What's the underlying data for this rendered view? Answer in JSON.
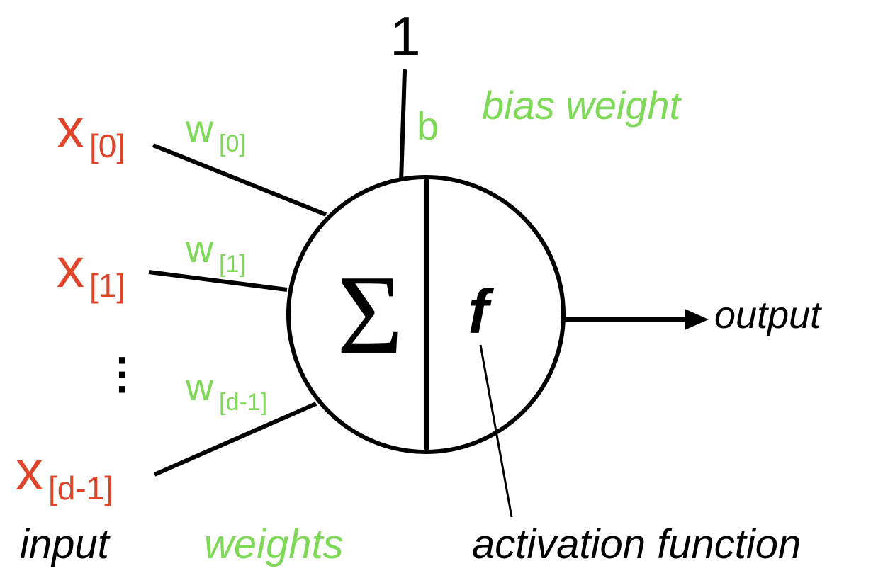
{
  "colors": {
    "input": "#e0452b",
    "weight": "#7ed957",
    "stroke": "#000000",
    "text": "#000000",
    "background": "#ffffff"
  },
  "bias": {
    "value": "1",
    "weight": "b",
    "caption": "bias weight"
  },
  "inputs": [
    {
      "base": "x",
      "index": "[0]"
    },
    {
      "base": "x",
      "index": "[1]"
    },
    {
      "base": "x",
      "index": "[d-1]"
    }
  ],
  "ellipsis": "⋮",
  "weights": [
    {
      "base": "w",
      "index": "[0]"
    },
    {
      "base": "w",
      "index": "[1]"
    },
    {
      "base": "w",
      "index": "[d-1]"
    }
  ],
  "neuron": {
    "sum_symbol": "Σ",
    "activation_symbol": "f"
  },
  "output_label": "output",
  "captions": {
    "input": "input",
    "weights": "weights",
    "activation": "activation function"
  }
}
